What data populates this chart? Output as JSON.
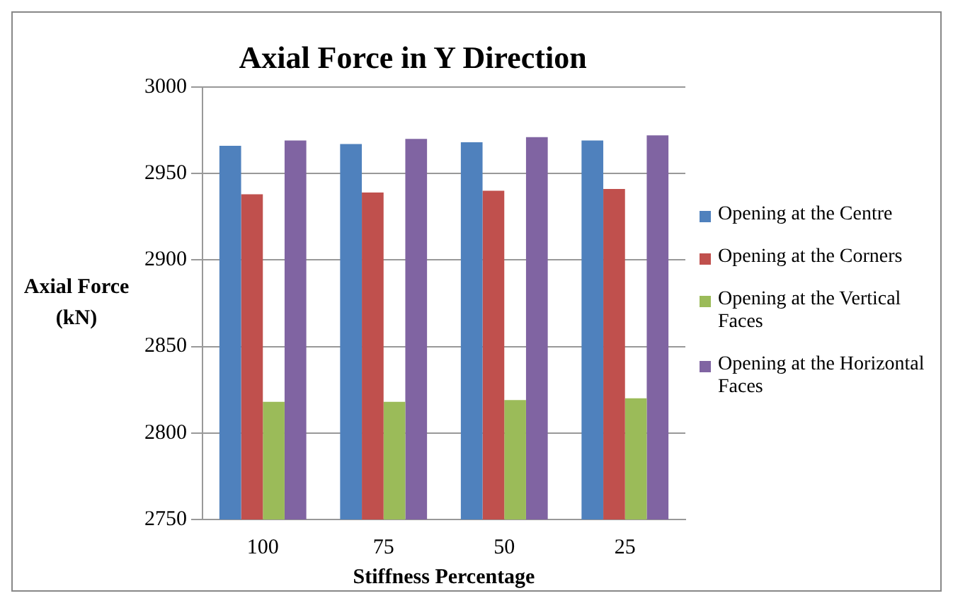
{
  "chart_data": {
    "type": "bar",
    "title": "Axial Force in Y Direction",
    "xlabel": "Stiffness Percentage",
    "ylabel": "Axial Force (kN)",
    "categories": [
      "100",
      "75",
      "50",
      "25"
    ],
    "series": [
      {
        "name": "Opening at the Centre",
        "color": "#4f81bd",
        "values": [
          2966,
          2967,
          2968,
          2969
        ]
      },
      {
        "name": "Opening at the Corners",
        "color": "#c0504d",
        "values": [
          2938,
          2939,
          2940,
          2941
        ]
      },
      {
        "name": "Opening at the Vertical Faces",
        "color": "#9bbb59",
        "values": [
          2818,
          2818,
          2819,
          2820
        ]
      },
      {
        "name": "Opening at the Horizontal Faces",
        "color": "#8064a2",
        "values": [
          2969,
          2970,
          2971,
          2972
        ]
      }
    ],
    "ylim": [
      2750,
      3000
    ],
    "yticks": [
      2750,
      2800,
      2850,
      2900,
      2950,
      3000
    ],
    "grid": "y",
    "legend": "right"
  }
}
